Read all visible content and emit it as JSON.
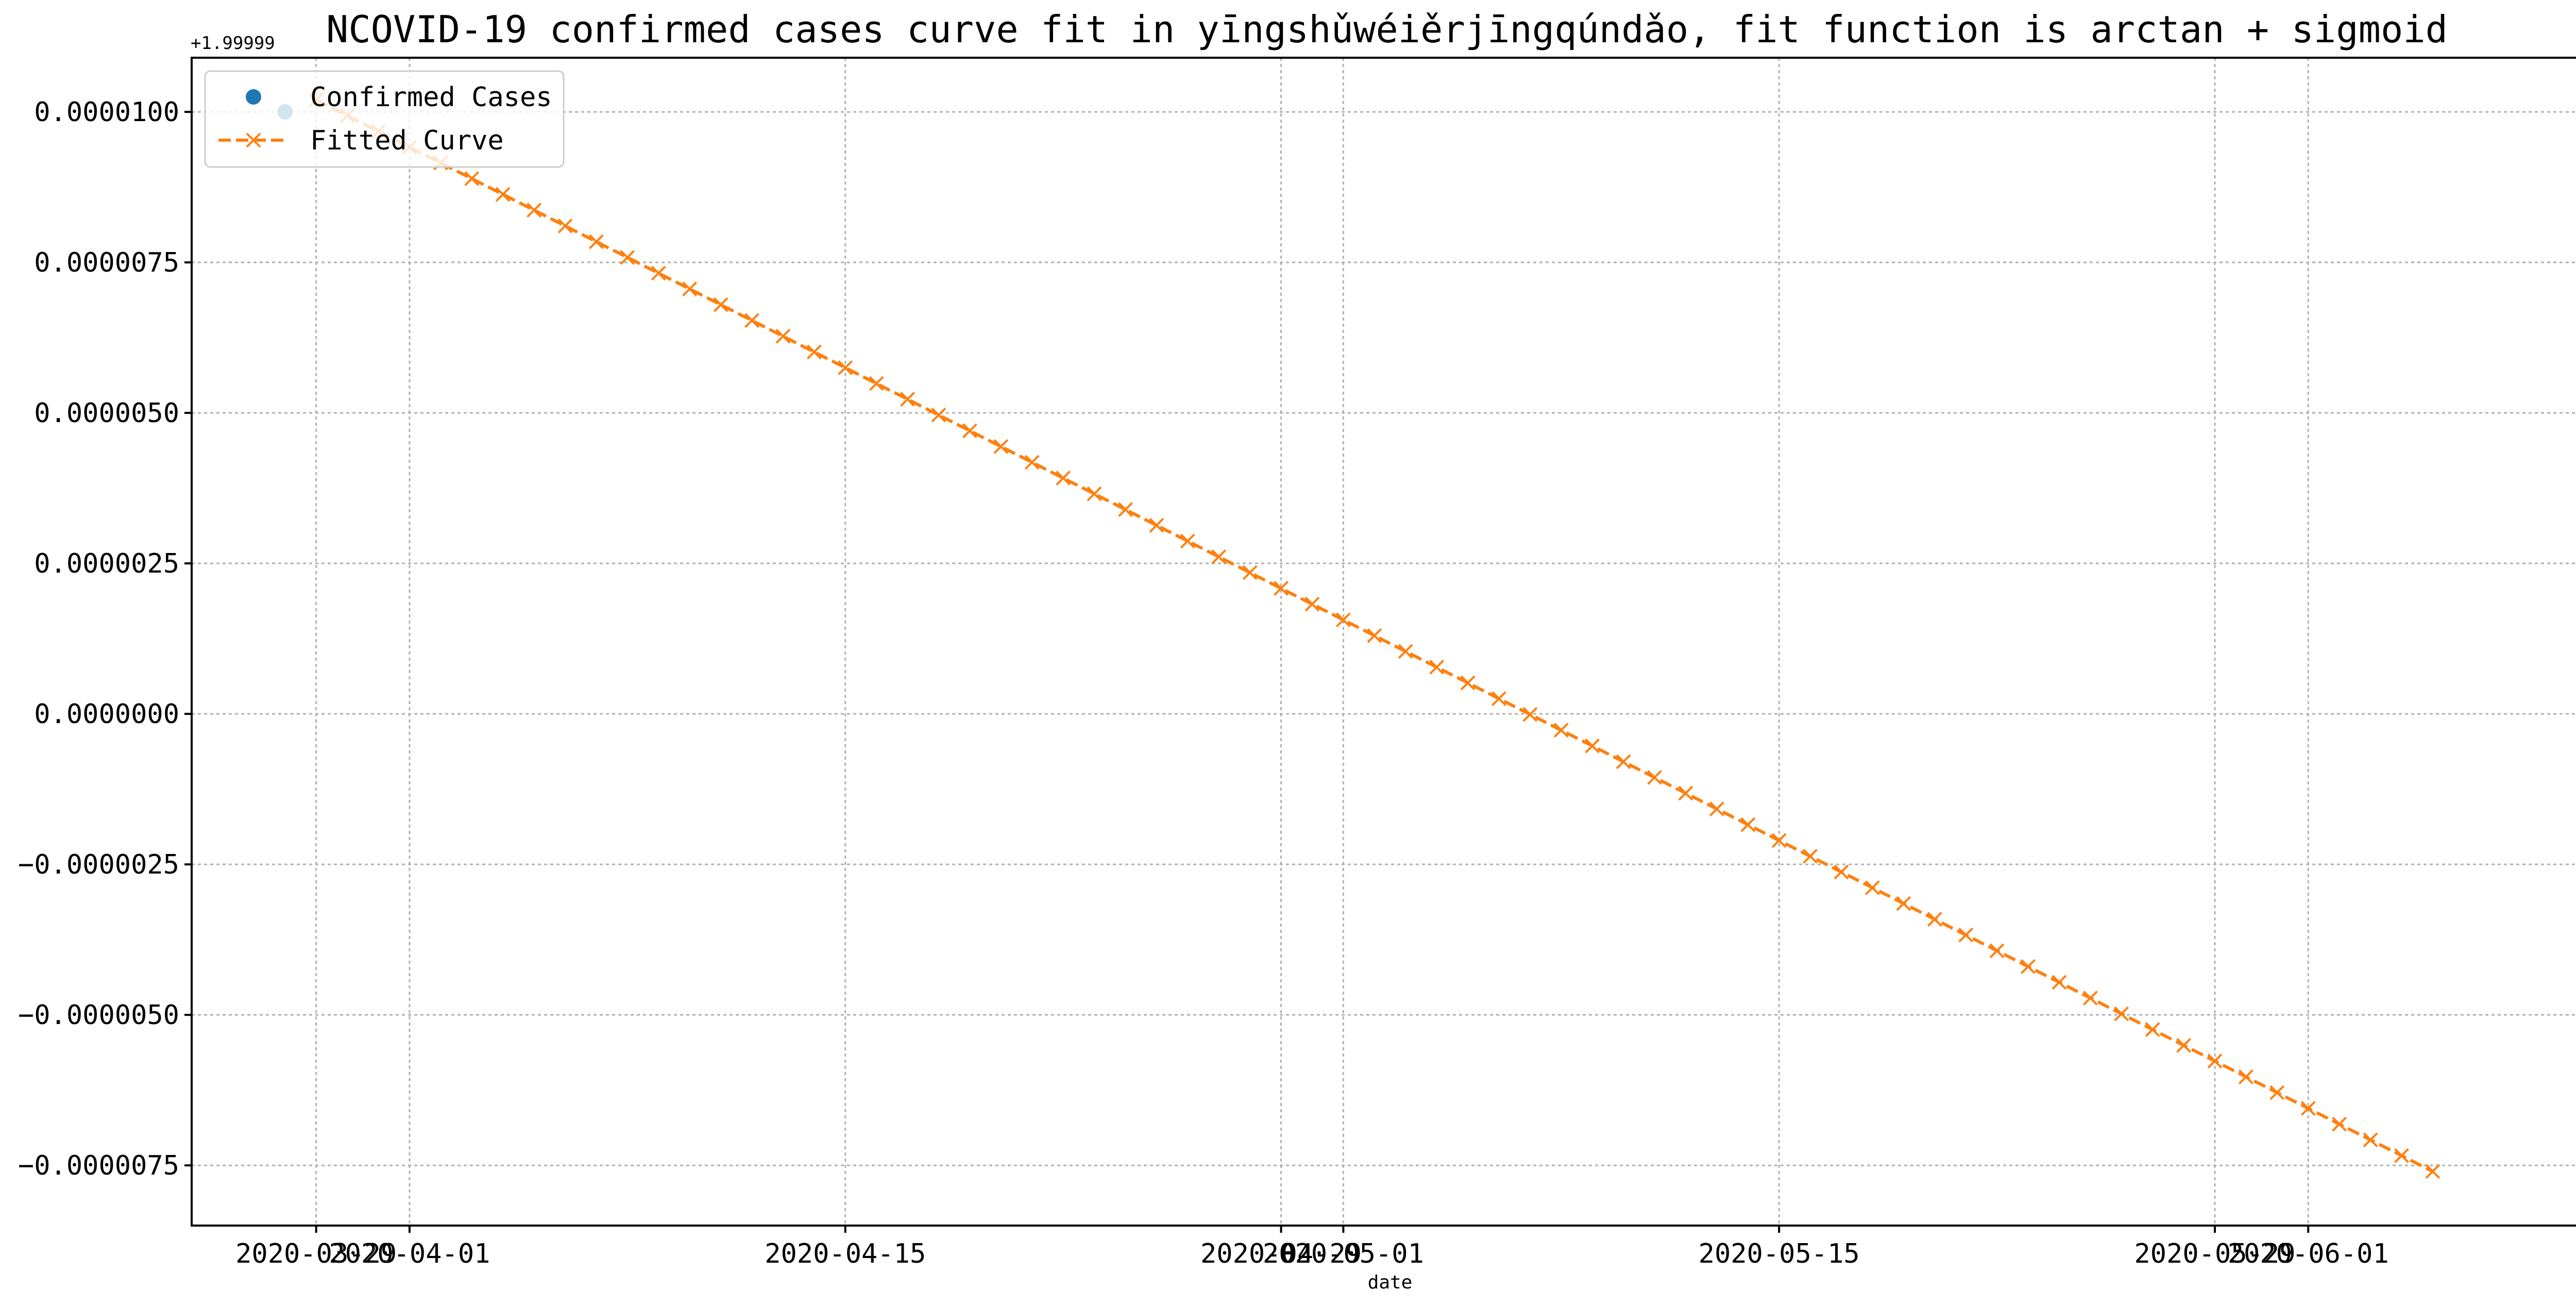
{
  "chart_data": {
    "type": "line",
    "title": "NCOVID-19 confirmed cases curve fit in yīngshǔwéiěrjīngqúndǎo, fit function is arctan + sigmoid",
    "xlabel": "date",
    "ylabel": "",
    "y_offset_label": "+1.99999",
    "x_ticks": [
      "2020-03-29",
      "2020-04-01",
      "2020-04-15",
      "2020-04-29",
      "2020-05-01",
      "2020-05-15",
      "2020-05-29",
      "2020-06-01"
    ],
    "y_ticks": [
      "0.0000100",
      "0.0000075",
      "0.0000050",
      "0.0000025",
      "0.0000000",
      "−0.0000025",
      "−0.0000050",
      "−0.0000075"
    ],
    "ylim": [
      -8.5e-06,
      1.09e-05
    ],
    "xlim": [
      "2020-03-25",
      "2020-06-10"
    ],
    "grid": true,
    "legend_position": "upper-left",
    "colors": {
      "confirmed": "#1f77b4",
      "fitted": "#ff7f0e"
    },
    "series": [
      {
        "name": "Confirmed Cases",
        "style": "points",
        "x": [
          "2020-03-28"
        ],
        "y": [
          1e-05
        ]
      },
      {
        "name": "Fitted Curve",
        "style": "dashed-line-x-markers",
        "x_start": "2020-03-29",
        "x_end": "2020-06-05",
        "y_start": 1.02e-05,
        "y_end": -7.6e-06
      }
    ]
  }
}
